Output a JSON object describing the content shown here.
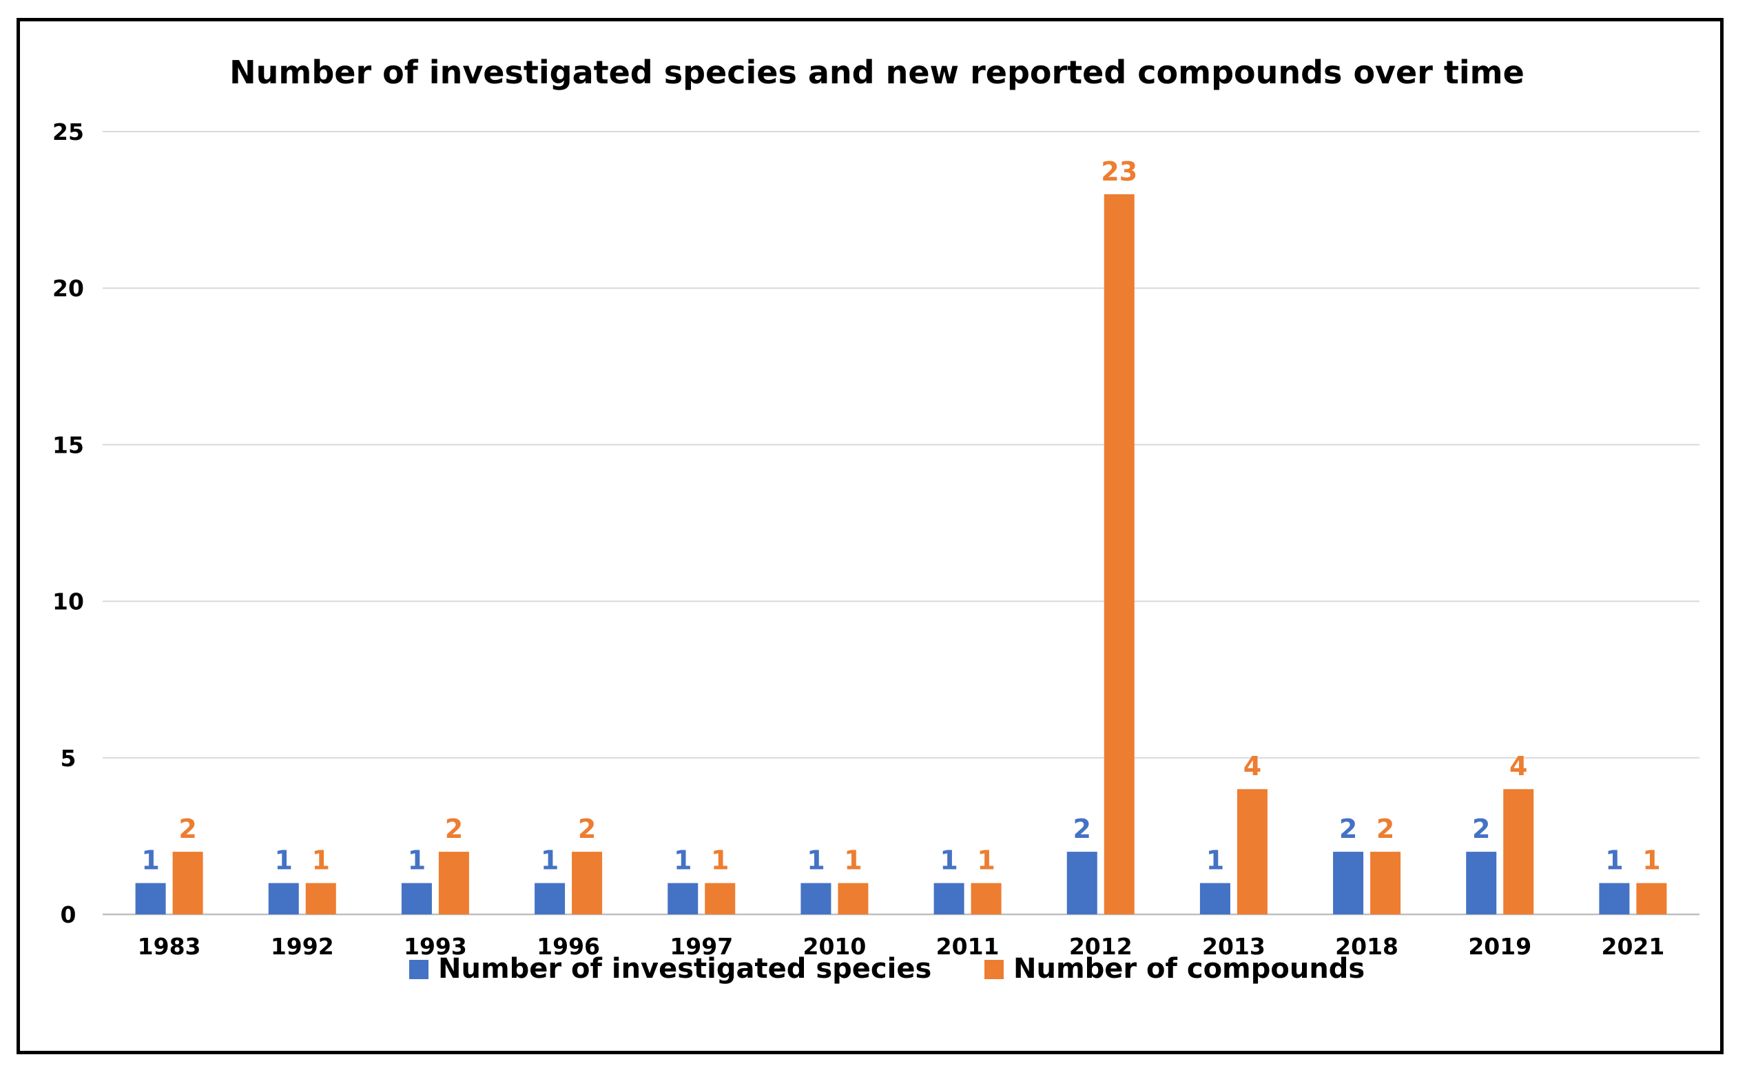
{
  "chart_data": {
    "type": "bar",
    "title": "Number of investigated species and new reported compounds over time",
    "xlabel": "",
    "ylabel": "",
    "categories": [
      "1983",
      "1992",
      "1993",
      "1996",
      "1997",
      "2010",
      "2011",
      "2012",
      "2013",
      "2018",
      "2019",
      "2021"
    ],
    "series": [
      {
        "name": "Number of investigated species",
        "color": "#4472C4",
        "values": [
          1,
          1,
          1,
          1,
          1,
          1,
          1,
          2,
          1,
          2,
          2,
          1
        ]
      },
      {
        "name": "Number of compounds",
        "color": "#ED7D31",
        "values": [
          2,
          1,
          2,
          2,
          1,
          1,
          1,
          23,
          4,
          2,
          4,
          1
        ]
      }
    ],
    "ylim": [
      0,
      25
    ],
    "yticks": [
      0,
      5,
      10,
      15,
      20,
      25
    ],
    "grid": true,
    "legend_position": "bottom",
    "data_labels": true
  }
}
